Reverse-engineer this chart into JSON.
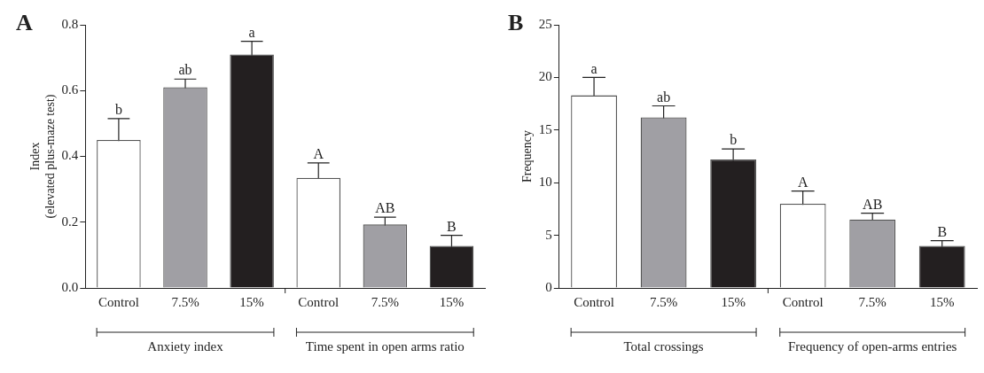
{
  "chart_data": [
    {
      "type": "bar",
      "title": "A",
      "ylabel": "Index\n(elevated plus-maze test)",
      "categories": [
        "Control",
        "7.5%",
        "15%",
        "Control",
        "7.5%",
        "15%"
      ],
      "values": [
        0.45,
        0.61,
        0.71,
        0.335,
        0.193,
        0.128
      ],
      "errors": [
        0.065,
        0.025,
        0.04,
        0.045,
        0.022,
        0.032
      ],
      "value_labels": [
        "b",
        "ab",
        "a",
        "A",
        "AB",
        "B"
      ],
      "colors": [
        "#ffffff",
        "#a09fa4",
        "#231f20",
        "#ffffff",
        "#a09fa4",
        "#231f20"
      ],
      "ylim": [
        0,
        0.8
      ],
      "yticks": [
        {
          "value": 0,
          "label": "0.0"
        },
        {
          "value": 0.2,
          "label": "0.2"
        },
        {
          "value": 0.4,
          "label": "0.4"
        },
        {
          "value": 0.6,
          "label": "0.6"
        },
        {
          "value": 0.8,
          "label": "0.8"
        }
      ],
      "annotations": [
        "Anxiety index",
        "Time spent in open arms ratio"
      ],
      "grid": false,
      "legend": false
    },
    {
      "type": "bar",
      "title": "B",
      "ylabel": "Frequency",
      "categories": [
        "Control",
        "7.5%",
        "15%",
        "Control",
        "7.5%",
        "15%"
      ],
      "values": [
        18.3,
        16.2,
        12.2,
        8.0,
        6.5,
        4.0
      ],
      "errors": [
        1.7,
        1.1,
        1.0,
        1.2,
        0.6,
        0.5
      ],
      "value_labels": [
        "a",
        "ab",
        "b",
        "A",
        "AB",
        "B"
      ],
      "colors": [
        "#ffffff",
        "#a09fa4",
        "#231f20",
        "#ffffff",
        "#a09fa4",
        "#231f20"
      ],
      "ylim": [
        0,
        25
      ],
      "yticks": [
        0,
        5,
        10,
        15,
        20,
        25
      ],
      "annotations": [
        "Total crossings",
        "Frequency of open-arms entries"
      ],
      "grid": false,
      "legend": false
    }
  ]
}
